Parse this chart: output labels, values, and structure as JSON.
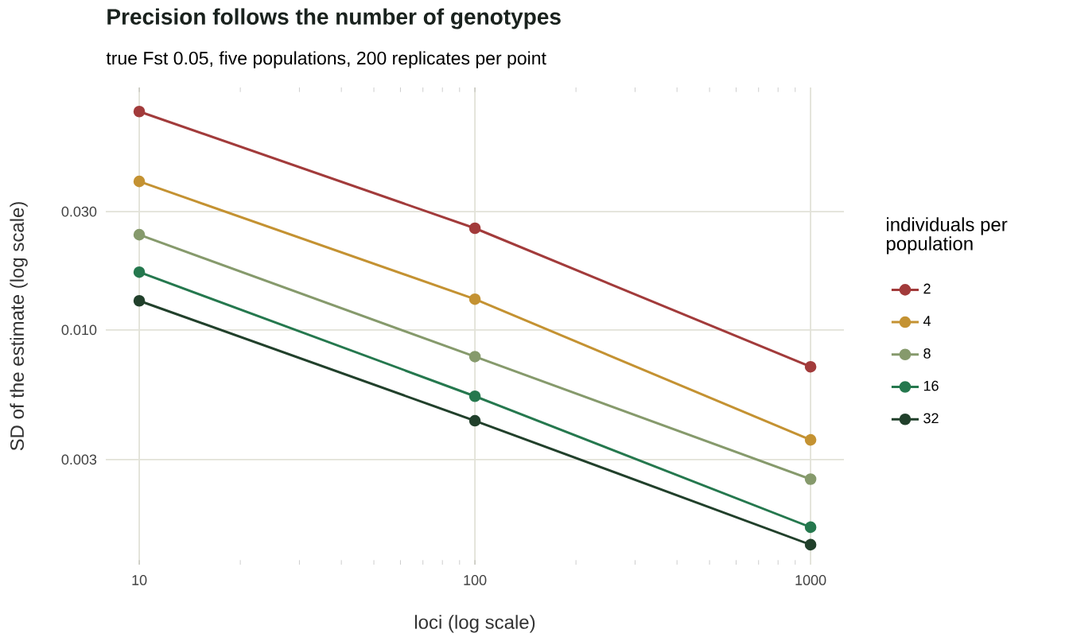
{
  "chart_data": {
    "type": "line",
    "title": "Precision follows the number of genotypes",
    "subtitle": "true Fst 0.05, five populations, 200 replicates per point",
    "xlabel": "loci (log scale)",
    "ylabel": "SD of the estimate (log scale)",
    "legend_title": "individuals per population",
    "x": [
      10,
      100,
      1000
    ],
    "series": [
      {
        "name": "2",
        "color": "#a23b3b",
        "values": [
          0.076,
          0.0257,
          0.0071
        ]
      },
      {
        "name": "4",
        "color": "#c49232",
        "values": [
          0.0397,
          0.0133,
          0.0036
        ]
      },
      {
        "name": "8",
        "color": "#869a6c",
        "values": [
          0.0242,
          0.0078,
          0.0025
        ]
      },
      {
        "name": "16",
        "color": "#25784e",
        "values": [
          0.0171,
          0.0054,
          0.0016
        ]
      },
      {
        "name": "32",
        "color": "#21402b",
        "values": [
          0.0131,
          0.0043,
          0.00136
        ]
      }
    ],
    "log": "xy",
    "xlim": [
      7.95,
      1257
    ],
    "ylim": [
      0.00113,
      0.095
    ],
    "xticks": [
      10,
      100,
      1000
    ],
    "yticks": [
      {
        "value": 0.003,
        "label": "0.003"
      },
      {
        "value": 0.01,
        "label": "0.010"
      },
      {
        "value": 0.03,
        "label": "0.030"
      }
    ],
    "grid": true,
    "legend": "right",
    "marker": "circle",
    "line_style": "solid"
  }
}
